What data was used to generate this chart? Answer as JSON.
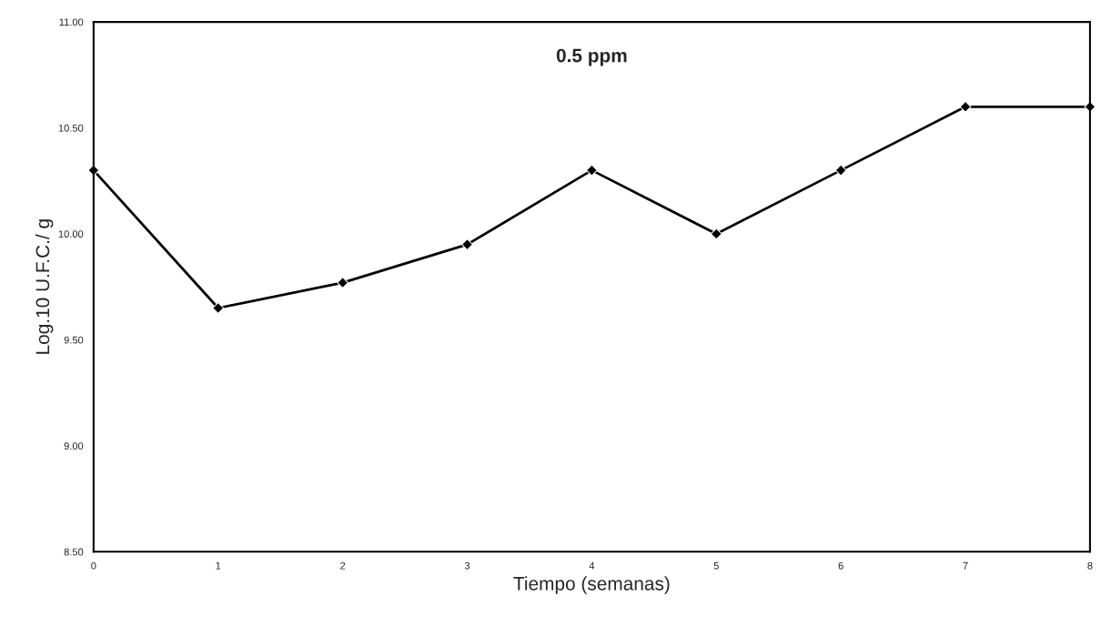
{
  "chart_data": {
    "type": "line",
    "title": "0.5 ppm",
    "xlabel": "Tiempo (semanas)",
    "ylabel": "Log.10 U.F.C./ g",
    "x": [
      0,
      1,
      2,
      3,
      4,
      5,
      6,
      7,
      8
    ],
    "series": [
      {
        "color": "#000000",
        "values": [
          10.3,
          9.65,
          9.77,
          9.95,
          10.3,
          10.0,
          10.3,
          10.6,
          10.6
        ]
      }
    ],
    "xlim": [
      0,
      8
    ],
    "xticks": [
      0,
      1,
      2,
      3,
      4,
      5,
      6,
      7,
      8
    ],
    "ylim": [
      8.5,
      11.0
    ],
    "yticks": [
      {
        "value": 8.5,
        "label": "8.50"
      },
      {
        "value": 9.0,
        "label": "9.00"
      },
      {
        "value": 9.5,
        "label": "9.50"
      },
      {
        "value": 10.0,
        "label": "10.00"
      },
      {
        "value": 10.5,
        "label": "10.50"
      },
      {
        "value": 11.0,
        "label": "11.00"
      }
    ],
    "marker": "diamond",
    "line_style": "solid",
    "grid": false,
    "legend": false
  }
}
